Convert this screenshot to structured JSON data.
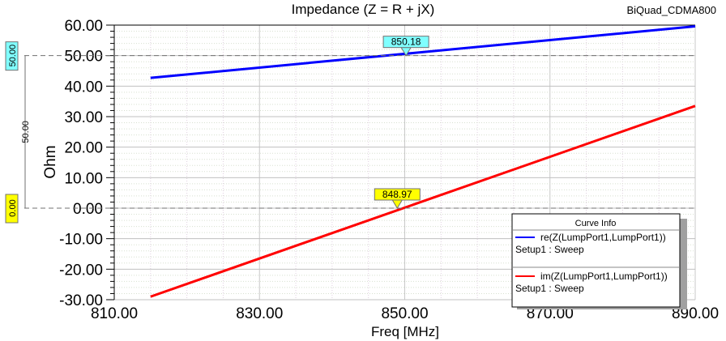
{
  "chart_data": {
    "type": "line",
    "title": "Impedance (Z = R + jX)",
    "design_name": "BiQuad_CDMA800",
    "xlabel": "Freq [MHz]",
    "ylabel": "Ohm",
    "xlim": [
      810,
      890
    ],
    "ylim": [
      -30,
      60
    ],
    "x_ticks": [
      "810.00",
      "830.00",
      "850.00",
      "870.00",
      "890.00"
    ],
    "y_ticks": [
      "60.00",
      "50.00",
      "40.00",
      "30.00",
      "20.00",
      "10.00",
      "0.00",
      "-10.00",
      "-20.00",
      "-30.00"
    ],
    "grid": true,
    "legend_title": "Curve Info",
    "legend_position": "bottom-right",
    "series": [
      {
        "name": "re(Z(LumpPort1,LumpPort1))",
        "setup": "Setup1 : Sweep",
        "color": "#0000ff",
        "x": [
          815,
          890
        ],
        "y": [
          42.7,
          59.6
        ]
      },
      {
        "name": "im(Z(LumpPort1,LumpPort1))",
        "setup": "Setup1 : Sweep",
        "color": "#ff0000",
        "x": [
          815,
          890
        ],
        "y": [
          -29.0,
          33.5
        ]
      }
    ],
    "markers": [
      {
        "label": "850.18",
        "x": 850.18,
        "y": 50.0,
        "color": "#80ffff",
        "y_label": "50.00"
      },
      {
        "label": "848.97",
        "x": 848.97,
        "y": 0.0,
        "color": "#ffff00",
        "y_label": "0.00"
      }
    ],
    "delta_label": "50.00"
  }
}
